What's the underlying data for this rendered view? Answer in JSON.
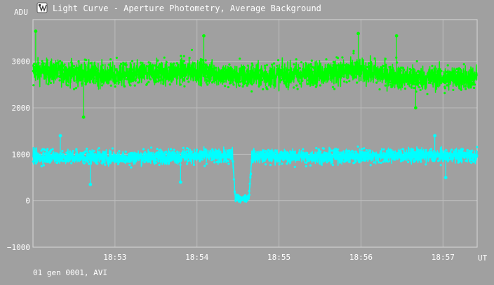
{
  "window": {
    "title": "Light Curve - Aperture Photometry, Average Background",
    "icon": "photometry-app-icon"
  },
  "footer": {
    "text": "01 gen 0001, AVI"
  },
  "chart_data": {
    "type": "scatter",
    "title": "Light Curve - Aperture Photometry, Average Background",
    "ylabel": "ADU",
    "xlabel": "UT",
    "x_range": [
      "18:52:00",
      "18:57:25"
    ],
    "ylim": [
      -1000,
      3900
    ],
    "y_ticks": [
      {
        "value": 3000,
        "label": "3000"
      },
      {
        "value": 2000,
        "label": "2000"
      },
      {
        "value": 1000,
        "label": "1000"
      },
      {
        "value": 0,
        "label": "0"
      },
      {
        "value": -1000,
        "label": "−1000"
      }
    ],
    "x_ticks": [
      "18:53",
      "18:54",
      "18:55",
      "18:56",
      "18:57"
    ],
    "grid": true,
    "series": [
      {
        "color": "#00ff00",
        "points": [
          {
            "t": "18:52:00",
            "mean": 2800,
            "spread": 350
          },
          {
            "t": "18:52:30",
            "mean": 2750,
            "spread": 350
          },
          {
            "t": "18:53:00",
            "mean": 2700,
            "spread": 350
          },
          {
            "t": "18:53:30",
            "mean": 2750,
            "spread": 350
          },
          {
            "t": "18:54:00",
            "mean": 2800,
            "spread": 350
          },
          {
            "t": "18:54:30",
            "mean": 2680,
            "spread": 350
          },
          {
            "t": "18:55:00",
            "mean": 2700,
            "spread": 350
          },
          {
            "t": "18:55:30",
            "mean": 2750,
            "spread": 350
          },
          {
            "t": "18:56:00",
            "mean": 2800,
            "spread": 350
          },
          {
            "t": "18:56:30",
            "mean": 2650,
            "spread": 350
          },
          {
            "t": "18:57:00",
            "mean": 2650,
            "spread": 350
          },
          {
            "t": "18:57:25",
            "mean": 2650,
            "spread": 350
          }
        ],
        "extremes": [
          {
            "t": "18:52:02",
            "adu": 3650
          },
          {
            "t": "18:52:37",
            "adu": 1800
          },
          {
            "t": "18:54:05",
            "adu": 3550
          },
          {
            "t": "18:55:58",
            "adu": 3600
          },
          {
            "t": "18:56:26",
            "adu": 3550
          },
          {
            "t": "18:56:40",
            "adu": 2000
          }
        ]
      },
      {
        "color": "#00ffff",
        "points": [
          {
            "t": "18:52:00",
            "mean": 950,
            "spread": 200
          },
          {
            "t": "18:53:00",
            "mean": 930,
            "spread": 200
          },
          {
            "t": "18:54:00",
            "mean": 960,
            "spread": 200
          },
          {
            "t": "18:54:26",
            "mean": 980,
            "spread": 200
          },
          {
            "t": "18:54:28",
            "mean": 50,
            "spread": 110
          },
          {
            "t": "18:54:38",
            "mean": 50,
            "spread": 110
          },
          {
            "t": "18:54:40",
            "mean": 960,
            "spread": 200
          },
          {
            "t": "18:55:30",
            "mean": 950,
            "spread": 200
          },
          {
            "t": "18:56:30",
            "mean": 980,
            "spread": 200
          },
          {
            "t": "18:57:25",
            "mean": 970,
            "spread": 200
          }
        ],
        "extremes": [
          {
            "t": "18:52:20",
            "adu": 1400
          },
          {
            "t": "18:52:42",
            "adu": 350
          },
          {
            "t": "18:53:48",
            "adu": 400
          },
          {
            "t": "18:56:54",
            "adu": 1400
          },
          {
            "t": "18:57:02",
            "adu": 500
          }
        ]
      }
    ]
  }
}
